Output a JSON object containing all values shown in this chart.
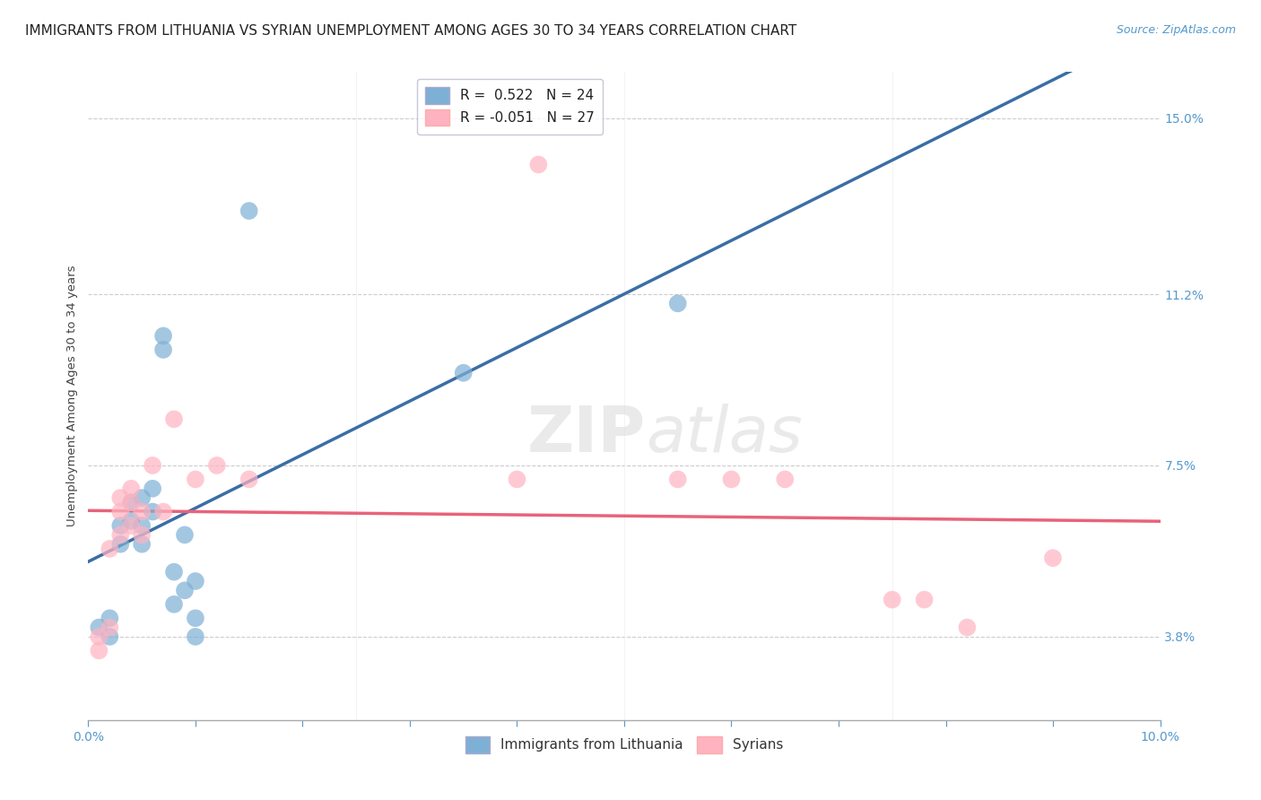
{
  "title": "IMMIGRANTS FROM LITHUANIA VS SYRIAN UNEMPLOYMENT AMONG AGES 30 TO 34 YEARS CORRELATION CHART",
  "source": "Source: ZipAtlas.com",
  "ylabel": "Unemployment Among Ages 30 to 34 years",
  "xlim": [
    0.0,
    0.1
  ],
  "ylim": [
    0.02,
    0.16
  ],
  "yticks": [
    0.038,
    0.075,
    0.112,
    0.15
  ],
  "ytick_labels": [
    "3.8%",
    "7.5%",
    "11.2%",
    "15.0%"
  ],
  "xticks": [
    0.0,
    0.01,
    0.02,
    0.03,
    0.04,
    0.05,
    0.06,
    0.07,
    0.08,
    0.09,
    0.1
  ],
  "xtick_labels": [
    "0.0%",
    "",
    "",
    "",
    "",
    "",
    "",
    "",
    "",
    "",
    "10.0%"
  ],
  "legend_R_blue": "R =  0.522",
  "legend_N_blue": "N = 24",
  "legend_R_pink": "R = -0.051",
  "legend_N_pink": "N = 27",
  "blue_color": "#7EB0D5",
  "pink_color": "#FFB3C1",
  "blue_line_color": "#3A6EA5",
  "pink_line_color": "#E8637A",
  "watermark_zip": "ZIP",
  "watermark_atlas": "atlas",
  "blue_scatter": [
    [
      0.001,
      0.04
    ],
    [
      0.002,
      0.038
    ],
    [
      0.002,
      0.042
    ],
    [
      0.003,
      0.058
    ],
    [
      0.003,
      0.062
    ],
    [
      0.004,
      0.063
    ],
    [
      0.004,
      0.067
    ],
    [
      0.005,
      0.062
    ],
    [
      0.005,
      0.058
    ],
    [
      0.005,
      0.068
    ],
    [
      0.006,
      0.065
    ],
    [
      0.006,
      0.07
    ],
    [
      0.007,
      0.1
    ],
    [
      0.007,
      0.103
    ],
    [
      0.008,
      0.045
    ],
    [
      0.008,
      0.052
    ],
    [
      0.009,
      0.06
    ],
    [
      0.009,
      0.048
    ],
    [
      0.01,
      0.05
    ],
    [
      0.01,
      0.042
    ],
    [
      0.01,
      0.038
    ],
    [
      0.015,
      0.13
    ],
    [
      0.035,
      0.095
    ],
    [
      0.055,
      0.11
    ]
  ],
  "pink_scatter": [
    [
      0.001,
      0.035
    ],
    [
      0.001,
      0.038
    ],
    [
      0.002,
      0.04
    ],
    [
      0.002,
      0.057
    ],
    [
      0.003,
      0.06
    ],
    [
      0.003,
      0.065
    ],
    [
      0.003,
      0.068
    ],
    [
      0.004,
      0.062
    ],
    [
      0.004,
      0.067
    ],
    [
      0.004,
      0.07
    ],
    [
      0.005,
      0.06
    ],
    [
      0.005,
      0.065
    ],
    [
      0.006,
      0.075
    ],
    [
      0.007,
      0.065
    ],
    [
      0.008,
      0.085
    ],
    [
      0.01,
      0.072
    ],
    [
      0.012,
      0.075
    ],
    [
      0.015,
      0.072
    ],
    [
      0.04,
      0.072
    ],
    [
      0.042,
      0.14
    ],
    [
      0.055,
      0.072
    ],
    [
      0.06,
      0.072
    ],
    [
      0.065,
      0.072
    ],
    [
      0.075,
      0.046
    ],
    [
      0.078,
      0.046
    ],
    [
      0.082,
      0.04
    ],
    [
      0.09,
      0.055
    ]
  ],
  "title_fontsize": 11,
  "source_fontsize": 9,
  "axis_label_fontsize": 9.5,
  "tick_fontsize": 10,
  "legend_fontsize": 11
}
